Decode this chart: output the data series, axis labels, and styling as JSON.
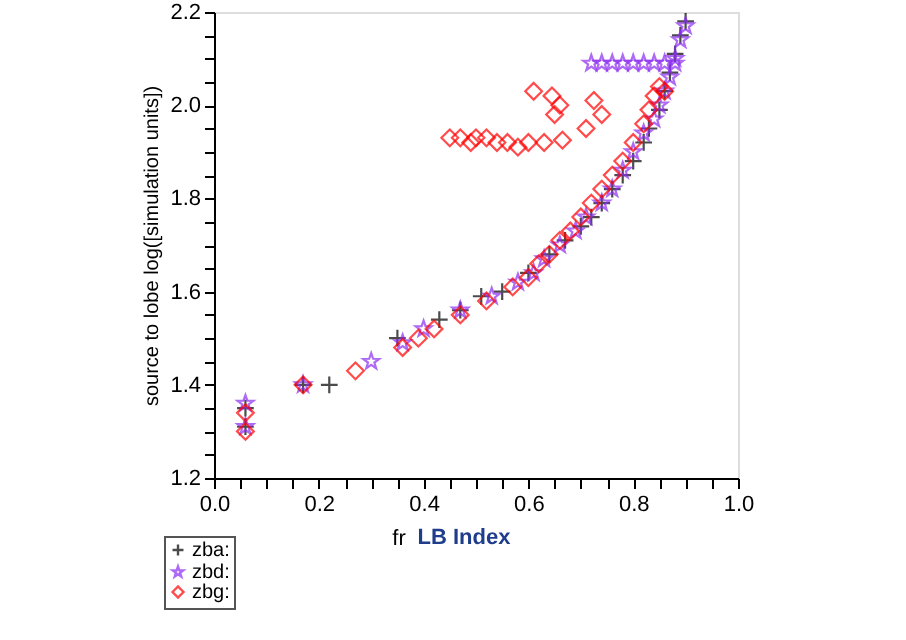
{
  "chart_data": {
    "type": "scatter",
    "xlabel": "fr",
    "ylabel": "source to lobe log([simulation units])",
    "annotations": [
      "LB Index"
    ],
    "xlim": [
      0.0,
      1.0
    ],
    "ylim": [
      1.2,
      2.2
    ],
    "xticks": [
      {
        "value": 0.0,
        "label": "0.0"
      },
      {
        "value": 0.05,
        "label": null
      },
      {
        "value": 0.1,
        "label": null
      },
      {
        "value": 0.15,
        "label": null
      },
      {
        "value": 0.2,
        "label": "0.2"
      },
      {
        "value": 0.25,
        "label": null
      },
      {
        "value": 0.3,
        "label": null
      },
      {
        "value": 0.35,
        "label": null
      },
      {
        "value": 0.4,
        "label": "0.4"
      },
      {
        "value": 0.45,
        "label": null
      },
      {
        "value": 0.5,
        "label": null
      },
      {
        "value": 0.55,
        "label": null
      },
      {
        "value": 0.6,
        "label": "0.6"
      },
      {
        "value": 0.65,
        "label": null
      },
      {
        "value": 0.7,
        "label": null
      },
      {
        "value": 0.75,
        "label": null
      },
      {
        "value": 0.8,
        "label": "0.8"
      },
      {
        "value": 0.85,
        "label": null
      },
      {
        "value": 0.9,
        "label": null
      },
      {
        "value": 0.95,
        "label": null
      },
      {
        "value": 1.0,
        "label": "1.0"
      }
    ],
    "yticks": [
      {
        "value": 1.2,
        "label": "1.2"
      },
      {
        "value": 1.25,
        "label": null
      },
      {
        "value": 1.3,
        "label": null
      },
      {
        "value": 1.35,
        "label": null
      },
      {
        "value": 1.4,
        "label": "1.4"
      },
      {
        "value": 1.45,
        "label": null
      },
      {
        "value": 1.5,
        "label": null
      },
      {
        "value": 1.55,
        "label": null
      },
      {
        "value": 1.6,
        "label": "1.6"
      },
      {
        "value": 1.65,
        "label": null
      },
      {
        "value": 1.7,
        "label": null
      },
      {
        "value": 1.75,
        "label": null
      },
      {
        "value": 1.8,
        "label": "1.8"
      },
      {
        "value": 1.85,
        "label": null
      },
      {
        "value": 1.9,
        "label": null
      },
      {
        "value": 1.95,
        "label": null
      },
      {
        "value": 2.0,
        "label": "2.0"
      },
      {
        "value": 2.05,
        "label": null
      },
      {
        "value": 2.1,
        "label": null
      },
      {
        "value": 2.15,
        "label": null
      },
      {
        "value": 2.2,
        "label": "2.2"
      }
    ],
    "grid": false,
    "legend": "bottom left",
    "series": [
      {
        "name": "zba:",
        "color": "#000000",
        "marker": "cross",
        "x": [
          0.06,
          0.06,
          0.17,
          0.22,
          0.35,
          0.43,
          0.47,
          0.51,
          0.55,
          0.6,
          0.64,
          0.67,
          0.7,
          0.72,
          0.74,
          0.76,
          0.78,
          0.8,
          0.82,
          0.83,
          0.85,
          0.86,
          0.87,
          0.88,
          0.89,
          0.9
        ],
        "values": [
          1.31,
          1.35,
          1.4,
          1.4,
          1.5,
          1.54,
          1.56,
          1.59,
          1.6,
          1.64,
          1.68,
          1.71,
          1.74,
          1.76,
          1.79,
          1.82,
          1.85,
          1.88,
          1.92,
          1.95,
          1.99,
          2.03,
          2.07,
          2.11,
          2.15,
          2.18
        ]
      },
      {
        "name": "zbd:",
        "color": "#8c2cf0",
        "marker": "star",
        "x": [
          0.06,
          0.06,
          0.17,
          0.3,
          0.36,
          0.4,
          0.47,
          0.53,
          0.58,
          0.61,
          0.63,
          0.66,
          0.69,
          0.71,
          0.74,
          0.76,
          0.78,
          0.8,
          0.82,
          0.84,
          0.85,
          0.86,
          0.87,
          0.88,
          0.89,
          0.9,
          0.72,
          0.74,
          0.76,
          0.78,
          0.8,
          0.82,
          0.84,
          0.86,
          0.88
        ],
        "values": [
          1.31,
          1.36,
          1.4,
          1.45,
          1.49,
          1.52,
          1.56,
          1.59,
          1.62,
          1.64,
          1.67,
          1.7,
          1.73,
          1.76,
          1.79,
          1.82,
          1.86,
          1.9,
          1.94,
          1.97,
          2.0,
          2.03,
          2.06,
          2.1,
          2.14,
          2.17,
          2.09,
          2.09,
          2.09,
          2.09,
          2.09,
          2.09,
          2.09,
          2.09,
          2.09
        ]
      },
      {
        "name": "zbg:",
        "color": "#ff0000",
        "marker": "diamond",
        "x": [
          0.06,
          0.06,
          0.17,
          0.27,
          0.36,
          0.39,
          0.42,
          0.47,
          0.52,
          0.57,
          0.6,
          0.62,
          0.64,
          0.66,
          0.68,
          0.7,
          0.72,
          0.74,
          0.76,
          0.78,
          0.8,
          0.82,
          0.83,
          0.84,
          0.85,
          0.86,
          0.45,
          0.47,
          0.49,
          0.5,
          0.52,
          0.54,
          0.56,
          0.58,
          0.6,
          0.63,
          0.665,
          0.61,
          0.645,
          0.66,
          0.65,
          0.71,
          0.725,
          0.74
        ],
        "values": [
          1.3,
          1.34,
          1.4,
          1.43,
          1.48,
          1.5,
          1.52,
          1.55,
          1.58,
          1.61,
          1.63,
          1.66,
          1.68,
          1.71,
          1.73,
          1.76,
          1.79,
          1.82,
          1.85,
          1.88,
          1.92,
          1.96,
          1.99,
          2.02,
          2.04,
          2.03,
          1.93,
          1.93,
          1.92,
          1.93,
          1.93,
          1.92,
          1.92,
          1.91,
          1.92,
          1.92,
          1.925,
          2.03,
          2.02,
          2.0,
          1.98,
          1.95,
          2.01,
          1.98
        ]
      }
    ]
  }
}
